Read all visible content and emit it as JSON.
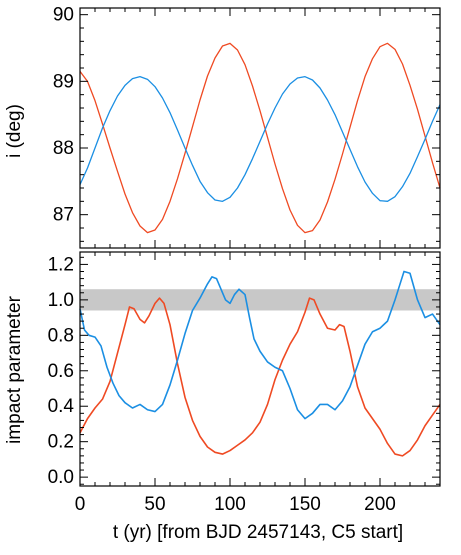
{
  "chart_data": [
    {
      "type": "line",
      "ylabel": "i (deg)",
      "xlabel": "",
      "xlim": [
        0,
        240
      ],
      "ylim": [
        86.5,
        90.1
      ],
      "xticks": [
        0,
        50,
        100,
        150,
        200
      ],
      "yticks": [
        87,
        88,
        89,
        90
      ],
      "yticklabels": [
        "87",
        "88",
        "89",
        "90"
      ],
      "colors": {
        "red": "#ef4a23",
        "blue": "#1b8fe3"
      },
      "series": [
        {
          "color": "#ef4a23",
          "x": [
            0,
            5,
            10,
            15,
            20,
            25,
            30,
            35,
            40,
            45,
            50,
            55,
            60,
            65,
            70,
            75,
            80,
            85,
            90,
            95,
            100,
            105,
            110,
            115,
            120,
            125,
            130,
            135,
            140,
            145,
            150,
            155,
            160,
            165,
            170,
            175,
            180,
            185,
            190,
            195,
            200,
            205,
            210,
            215,
            220,
            225,
            230,
            235,
            240
          ],
          "y": [
            89.15,
            89.0,
            88.71,
            88.36,
            88.0,
            87.65,
            87.31,
            87.03,
            86.83,
            86.73,
            86.77,
            86.93,
            87.2,
            87.54,
            87.92,
            88.32,
            88.72,
            89.08,
            89.35,
            89.53,
            89.57,
            89.47,
            89.25,
            88.93,
            88.56,
            88.16,
            87.76,
            87.39,
            87.07,
            86.84,
            86.73,
            86.76,
            86.92,
            87.19,
            87.53,
            87.91,
            88.31,
            88.71,
            89.07,
            89.34,
            89.52,
            89.57,
            89.48,
            89.26,
            88.94,
            88.58,
            88.18,
            87.78,
            87.4
          ]
        },
        {
          "color": "#1b8fe3",
          "x": [
            0,
            5,
            10,
            15,
            20,
            25,
            30,
            35,
            40,
            45,
            50,
            55,
            60,
            65,
            70,
            75,
            80,
            85,
            90,
            95,
            100,
            105,
            110,
            115,
            120,
            125,
            130,
            135,
            140,
            145,
            150,
            155,
            160,
            165,
            170,
            175,
            180,
            185,
            190,
            195,
            200,
            205,
            210,
            215,
            220,
            225,
            230,
            235,
            240
          ],
          "y": [
            87.45,
            87.7,
            88.0,
            88.3,
            88.56,
            88.78,
            88.94,
            89.04,
            89.07,
            89.03,
            88.92,
            88.75,
            88.53,
            88.27,
            88.0,
            87.74,
            87.5,
            87.33,
            87.22,
            87.2,
            87.26,
            87.4,
            87.6,
            87.84,
            88.1,
            88.36,
            88.6,
            88.81,
            88.96,
            89.05,
            89.07,
            89.02,
            88.9,
            88.72,
            88.5,
            88.24,
            87.98,
            87.72,
            87.49,
            87.32,
            87.21,
            87.2,
            87.27,
            87.42,
            87.62,
            87.87,
            88.13,
            88.4,
            88.65
          ]
        }
      ]
    },
    {
      "type": "line",
      "ylabel": "impact parameter",
      "xlabel": "t (yr) [from BJD 2457143, C5 start]",
      "xlim": [
        0,
        240
      ],
      "ylim": [
        -0.05,
        1.27
      ],
      "xticks": [
        0,
        50,
        100,
        150,
        200
      ],
      "xticklabels": [
        "0",
        "50",
        "100",
        "150",
        "200"
      ],
      "yticks": [
        0.0,
        0.2,
        0.4,
        0.6,
        0.8,
        1.0,
        1.2
      ],
      "yticklabels": [
        "0.0",
        "0.2",
        "0.4",
        "0.6",
        "0.8",
        "1.0",
        "1.2"
      ],
      "band": {
        "y0": 0.94,
        "y1": 1.06,
        "color": "#c8c8c8"
      },
      "colors": {
        "red": "#ef4a23",
        "blue": "#1b8fe3"
      },
      "series": [
        {
          "color": "#ef4a23",
          "x": [
            0,
            5,
            10,
            15,
            20,
            25,
            30,
            33,
            36,
            40,
            43,
            46,
            50,
            53,
            56,
            60,
            65,
            70,
            75,
            80,
            85,
            90,
            95,
            100,
            105,
            110,
            115,
            120,
            125,
            130,
            135,
            140,
            145,
            150,
            153,
            156,
            160,
            165,
            170,
            173,
            176,
            180,
            185,
            190,
            195,
            200,
            205,
            210,
            215,
            220,
            225,
            230,
            235,
            240
          ],
          "y": [
            0.25,
            0.33,
            0.39,
            0.44,
            0.54,
            0.7,
            0.86,
            0.96,
            0.95,
            0.89,
            0.87,
            0.91,
            0.98,
            1.01,
            0.98,
            0.86,
            0.64,
            0.45,
            0.32,
            0.23,
            0.17,
            0.14,
            0.13,
            0.15,
            0.18,
            0.21,
            0.25,
            0.31,
            0.41,
            0.55,
            0.66,
            0.75,
            0.82,
            0.93,
            1.01,
            1.0,
            0.92,
            0.84,
            0.83,
            0.86,
            0.85,
            0.71,
            0.51,
            0.39,
            0.33,
            0.27,
            0.19,
            0.13,
            0.12,
            0.15,
            0.21,
            0.29,
            0.35,
            0.41
          ]
        },
        {
          "color": "#1b8fe3",
          "x": [
            0,
            3,
            6,
            10,
            14,
            18,
            22,
            26,
            30,
            35,
            40,
            45,
            50,
            55,
            60,
            65,
            70,
            75,
            80,
            85,
            88,
            91,
            94,
            97,
            100,
            103,
            106,
            110,
            113,
            116,
            120,
            125,
            130,
            135,
            140,
            145,
            150,
            155,
            160,
            165,
            170,
            175,
            180,
            185,
            190,
            195,
            200,
            205,
            210,
            213,
            216,
            220,
            225,
            230,
            235,
            240
          ],
          "y": [
            0.95,
            0.83,
            0.8,
            0.79,
            0.74,
            0.62,
            0.53,
            0.46,
            0.42,
            0.39,
            0.41,
            0.38,
            0.37,
            0.41,
            0.52,
            0.66,
            0.81,
            0.94,
            1.01,
            1.09,
            1.13,
            1.12,
            1.06,
            1.0,
            0.98,
            1.03,
            1.06,
            1.03,
            0.9,
            0.78,
            0.71,
            0.65,
            0.62,
            0.6,
            0.5,
            0.38,
            0.33,
            0.36,
            0.41,
            0.41,
            0.38,
            0.43,
            0.51,
            0.63,
            0.75,
            0.82,
            0.84,
            0.88,
            1.0,
            1.08,
            1.16,
            1.15,
            1.0,
            0.9,
            0.92,
            0.86
          ]
        }
      ]
    }
  ]
}
